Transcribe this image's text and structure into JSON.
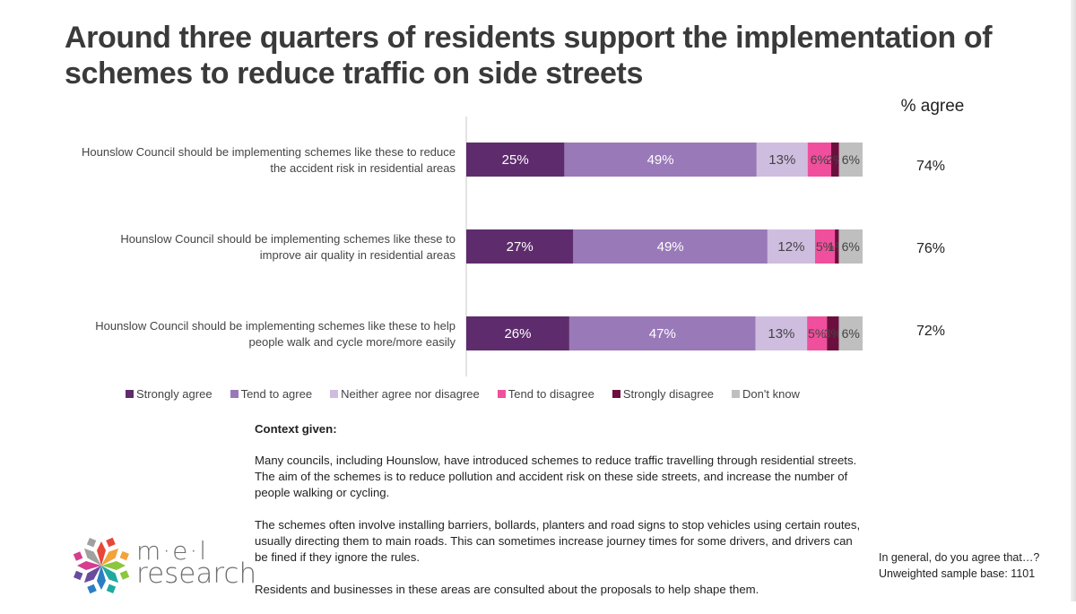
{
  "title": "Around three quarters of residents support the implementation of schemes to reduce traffic on side streets",
  "agree_header": "% agree",
  "colors": {
    "strongly_agree": "#5e2c6d",
    "tend_to_agree": "#9a79b8",
    "neither": "#cfbde0",
    "tend_to_disagree": "#f04f9d",
    "strongly_disagree": "#6d0f3e",
    "dont_know": "#bfbfbf"
  },
  "chart_data": {
    "type": "bar",
    "orientation": "horizontal",
    "stacked": true,
    "categories": [
      [
        "Hounslow Council should be implementing schemes like these to reduce",
        "the accident risk in residential areas"
      ],
      [
        "Hounslow Council should be implementing schemes like these to",
        "improve air quality in residential areas"
      ],
      [
        "Hounslow Council should be implementing schemes like these to help",
        "people walk and cycle more/more easily"
      ]
    ],
    "series": [
      {
        "name": "Strongly agree",
        "values": [
          25,
          27,
          26
        ],
        "labels": [
          "25%",
          "27%",
          "26%"
        ]
      },
      {
        "name": "Tend to agree",
        "values": [
          49,
          49,
          47
        ],
        "labels": [
          "49%",
          "49%",
          "47%"
        ]
      },
      {
        "name": "Neither agree nor disagree",
        "values": [
          13,
          12,
          13
        ],
        "labels": [
          "13%",
          "12%",
          "13%"
        ]
      },
      {
        "name": "Tend to disagree",
        "values": [
          6,
          5,
          5
        ],
        "labels": [
          "6%",
          "5%",
          "5%"
        ]
      },
      {
        "name": "Strongly disagree",
        "values": [
          2,
          1,
          3
        ],
        "labels": [
          "2%",
          "1%",
          "3%"
        ]
      },
      {
        "name": "Don't know",
        "values": [
          6,
          6,
          6
        ],
        "labels": [
          "6%",
          "6%",
          "6%"
        ]
      }
    ],
    "agree_totals": [
      "74%",
      "76%",
      "72%"
    ],
    "legend_position": "bottom",
    "grid": false
  },
  "context": {
    "heading": "Context given:",
    "paragraphs": [
      "Many councils, including Hounslow, have introduced schemes to reduce traffic travelling through residential streets. The aim of the schemes is to reduce pollution and accident risk on these side streets, and increase the number of people walking or cycling.",
      "The schemes often involve installing barriers, bollards, planters and road signs to stop vehicles using certain routes, usually directing them to main roads. This can sometimes increase journey times for some drivers, and drivers can be fined if they ignore the rules.",
      "Residents and businesses in these areas are consulted about the proposals to help shape them."
    ]
  },
  "footnote": {
    "question": "In general, do you agree that…?",
    "base": "Unweighted sample base: 1101"
  },
  "logo": {
    "line1": "m·e·l",
    "line2": "research",
    "petal_colors": [
      "#e8463a",
      "#f2a33a",
      "#8cc63f",
      "#1fa9a0",
      "#2a7fc1",
      "#6a4c9c",
      "#d63d8f",
      "#a0a0a0"
    ]
  }
}
